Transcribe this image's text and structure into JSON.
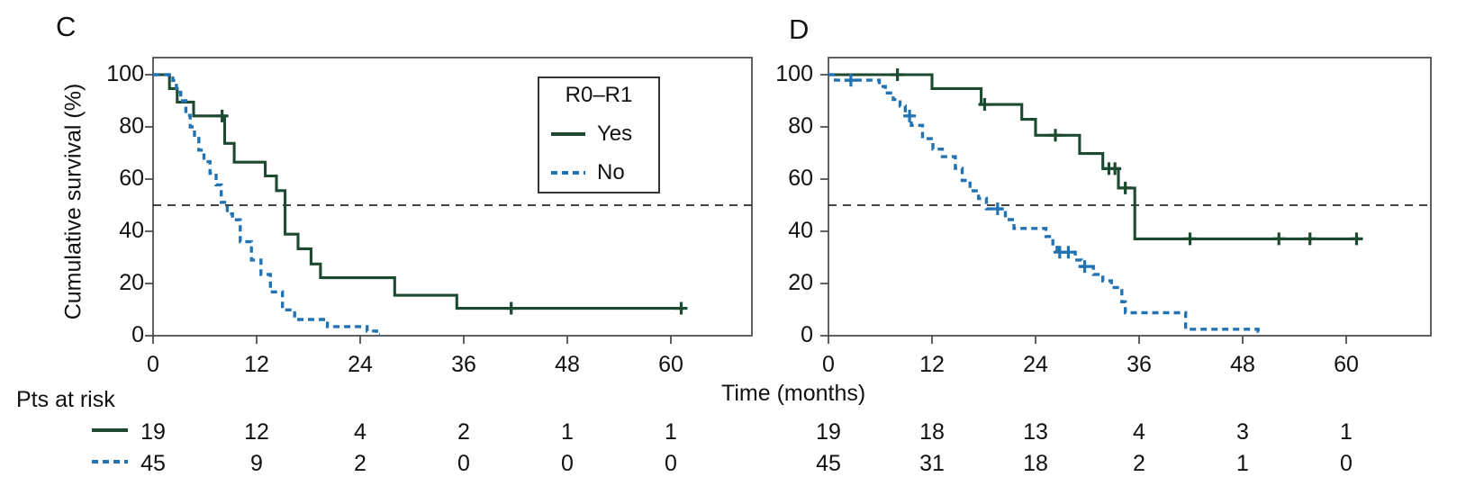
{
  "labels": {
    "xlabel": "Time (months)",
    "risk_header": "Pts at risk"
  },
  "colors": {
    "yes_line": "#1c4a30",
    "no_line": "#2173b4",
    "median_line": "#2a2a2a",
    "axis": "#444444",
    "text": "#111111"
  },
  "chart_data": [
    {
      "type": "line",
      "subtype": "kaplan-meier-step",
      "panel_label": "C",
      "ylabel": "Cumulative survival (%)",
      "xlabel": "Time (months)",
      "xticks": [
        0,
        12,
        24,
        36,
        48,
        60
      ],
      "yticks": [
        0,
        20,
        40,
        60,
        80,
        100
      ],
      "xlim": [
        0,
        69.5
      ],
      "ylim": [
        0,
        100
      ],
      "median_reference_pct": 50,
      "legend": {
        "title": "R0–R1",
        "items": [
          {
            "label": "Yes",
            "style": "solid"
          },
          {
            "label": "No",
            "style": "dashed"
          }
        ]
      },
      "series": [
        {
          "name": "Yes",
          "style": "solid",
          "color": "#1c4a30",
          "steps": [
            [
              0,
              100
            ],
            [
              1.9,
              94.7
            ],
            [
              2.8,
              89.5
            ],
            [
              4.7,
              84.2
            ],
            [
              8.3,
              73.7
            ],
            [
              9.4,
              66.5
            ],
            [
              13.0,
              61.2
            ],
            [
              14.3,
              55.6
            ],
            [
              15.3,
              38.9
            ],
            [
              16.8,
              33.3
            ],
            [
              18.3,
              27.5
            ],
            [
              19.4,
              22.2
            ],
            [
              28.0,
              15.5
            ],
            [
              35.2,
              10.5
            ]
          ],
          "end": 61.6,
          "censors": [
            [
              8.0,
              84.2
            ],
            [
              41.5,
              10.5
            ],
            [
              61.2,
              10.5
            ]
          ]
        },
        {
          "name": "No",
          "style": "dashed",
          "color": "#2173b4",
          "steps": [
            [
              0,
              100
            ],
            [
              2.3,
              97.8
            ],
            [
              2.7,
              93.3
            ],
            [
              3.2,
              90.0
            ],
            [
              3.8,
              84.4
            ],
            [
              4.3,
              80.0
            ],
            [
              4.8,
              75.6
            ],
            [
              5.3,
              71.1
            ],
            [
              5.9,
              66.7
            ],
            [
              6.6,
              62.2
            ],
            [
              7.3,
              57.8
            ],
            [
              7.9,
              51.1
            ],
            [
              8.6,
              46.7
            ],
            [
              9.2,
              44.4
            ],
            [
              10.1,
              36.0
            ],
            [
              11.4,
              29.0
            ],
            [
              12.5,
              23.5
            ],
            [
              13.6,
              16.8
            ],
            [
              15.0,
              9.9
            ],
            [
              16.4,
              6.2
            ],
            [
              20.2,
              3.5
            ],
            [
              24.8,
              1.8
            ],
            [
              25.9,
              0.3
            ]
          ],
          "end": 26.3,
          "censors": []
        }
      ],
      "at_risk": {
        "times": [
          0,
          12,
          24,
          36,
          48,
          60
        ],
        "rows": [
          {
            "name": "Yes",
            "values": [
              19,
              12,
              4,
              2,
              1,
              1
            ]
          },
          {
            "name": "No",
            "values": [
              45,
              9,
              2,
              0,
              0,
              0
            ]
          }
        ]
      }
    },
    {
      "type": "line",
      "subtype": "kaplan-meier-step",
      "panel_label": "D",
      "ylabel": "",
      "xlabel": "Time (months)",
      "xticks": [
        0,
        12,
        24,
        36,
        48,
        60
      ],
      "yticks": [
        0,
        20,
        40,
        60,
        80,
        100
      ],
      "xlim": [
        0,
        69.8
      ],
      "ylim": [
        0,
        100
      ],
      "median_reference_pct": 50,
      "series": [
        {
          "name": "Yes",
          "style": "solid",
          "color": "#1c4a30",
          "steps": [
            [
              0,
              100
            ],
            [
              12.0,
              94.7
            ],
            [
              17.7,
              88.6
            ],
            [
              22.4,
              82.9
            ],
            [
              24.0,
              76.8
            ],
            [
              29.1,
              69.8
            ],
            [
              31.8,
              64.0
            ],
            [
              33.6,
              56.6
            ],
            [
              35.5,
              37.1
            ]
          ],
          "end": 61.7,
          "censors": [
            [
              8.0,
              100
            ],
            [
              18.1,
              88.6
            ],
            [
              26.3,
              76.8
            ],
            [
              32.5,
              64.0
            ],
            [
              33.2,
              64.0
            ],
            [
              34.4,
              56.6
            ],
            [
              41.9,
              37.1
            ],
            [
              52.2,
              37.1
            ],
            [
              55.8,
              37.1
            ],
            [
              61.2,
              37.1
            ]
          ]
        },
        {
          "name": "No",
          "style": "dashed",
          "color": "#2173b4",
          "steps": [
            [
              0,
              100
            ],
            [
              0.8,
              97.9
            ],
            [
              5.9,
              95.5
            ],
            [
              6.6,
              93.0
            ],
            [
              7.5,
              90.5
            ],
            [
              8.3,
              88.0
            ],
            [
              8.9,
              84.2
            ],
            [
              9.6,
              80.6
            ],
            [
              10.9,
              75.5
            ],
            [
              12.1,
              71.5
            ],
            [
              13.2,
              68.6
            ],
            [
              14.7,
              64.1
            ],
            [
              15.5,
              59.5
            ],
            [
              16.4,
              55.5
            ],
            [
              17.4,
              52.6
            ],
            [
              18.3,
              48.6
            ],
            [
              20.5,
              44.5
            ],
            [
              21.5,
              41.1
            ],
            [
              25.2,
              38.0
            ],
            [
              26.0,
              34.5
            ],
            [
              26.5,
              32.0
            ],
            [
              28.6,
              29.0
            ],
            [
              29.3,
              26.5
            ],
            [
              30.7,
              23.5
            ],
            [
              31.8,
              21.0
            ],
            [
              32.8,
              18.5
            ],
            [
              34.0,
              13.0
            ],
            [
              34.4,
              8.8
            ],
            [
              41.4,
              2.5
            ],
            [
              49.8,
              1.5
            ]
          ],
          "end": 50.0,
          "censors": [
            [
              2.6,
              97.9
            ],
            [
              9.4,
              84.2
            ],
            [
              19.6,
              48.6
            ],
            [
              26.8,
              32.0
            ],
            [
              27.8,
              32.0
            ],
            [
              29.7,
              26.5
            ]
          ]
        }
      ],
      "at_risk": {
        "times": [
          0,
          12,
          24,
          36,
          48,
          60
        ],
        "rows": [
          {
            "name": "Yes",
            "values": [
              19,
              18,
              13,
              4,
              3,
              1
            ]
          },
          {
            "name": "No",
            "values": [
              45,
              31,
              18,
              2,
              1,
              0
            ]
          }
        ]
      }
    }
  ]
}
